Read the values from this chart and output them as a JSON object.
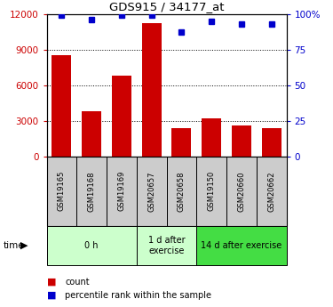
{
  "title": "GDS915 / 34177_at",
  "samples": [
    "GSM19165",
    "GSM19168",
    "GSM19169",
    "GSM20657",
    "GSM20658",
    "GSM19150",
    "GSM20660",
    "GSM20662"
  ],
  "counts": [
    8500,
    3800,
    6800,
    11200,
    2400,
    3200,
    2600,
    2400
  ],
  "percentiles": [
    99,
    96,
    99,
    99,
    87,
    95,
    93,
    93
  ],
  "groups": [
    {
      "label": "0 h",
      "start": 0,
      "end": 3,
      "color": "#ccffcc"
    },
    {
      "label": "1 d after\nexercise",
      "start": 3,
      "end": 5,
      "color": "#ccffcc"
    },
    {
      "label": "14 d after exercise",
      "start": 5,
      "end": 8,
      "color": "#44dd44"
    }
  ],
  "bar_color": "#cc0000",
  "dot_color": "#0000cc",
  "left_axis_color": "#cc0000",
  "right_axis_color": "#0000cc",
  "ylim_left": [
    0,
    12000
  ],
  "ylim_right": [
    0,
    100
  ],
  "left_ticks": [
    0,
    3000,
    6000,
    9000,
    12000
  ],
  "right_ticks": [
    0,
    25,
    50,
    75,
    100
  ],
  "right_tick_labels": [
    "0",
    "25",
    "50",
    "75",
    "100%"
  ],
  "grid_color": "#000000",
  "bg_color": "#ffffff",
  "sample_bg": "#cccccc",
  "group0_color": "#ccffcc",
  "group1_color": "#ccffcc",
  "group2_color": "#44dd44"
}
